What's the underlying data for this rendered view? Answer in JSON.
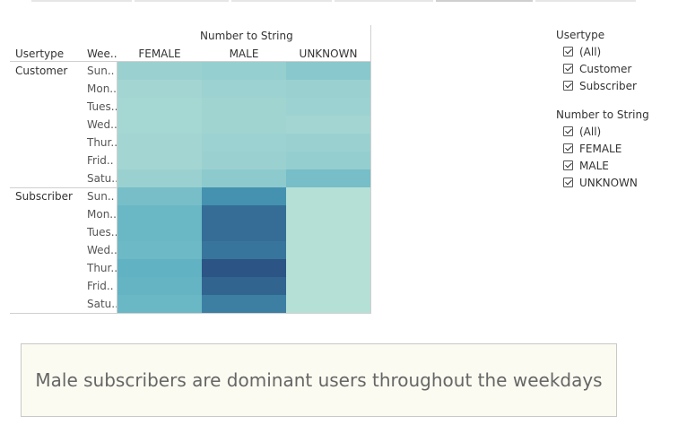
{
  "colors": {
    "scale": [
      "#b9e2d7",
      "#2c5485"
    ]
  },
  "heatmap": {
    "col_group_title": "Number to String",
    "row_headers": [
      "Usertype",
      "Wee.."
    ]
  },
  "chart_data": {
    "type": "heatmap",
    "title": "",
    "columns": [
      "FEMALE",
      "MALE",
      "UNKNOWN"
    ],
    "groups": [
      {
        "name": "Customer",
        "days": [
          "Sun..",
          "Mon..",
          "Tues..",
          "Wed..",
          "Thur..",
          "Frid..",
          "Satu.."
        ],
        "values": [
          [
            0.14,
            0.16,
            0.22
          ],
          [
            0.1,
            0.13,
            0.14
          ],
          [
            0.09,
            0.12,
            0.13
          ],
          [
            0.09,
            0.12,
            0.1
          ],
          [
            0.1,
            0.13,
            0.14
          ],
          [
            0.1,
            0.14,
            0.17
          ],
          [
            0.14,
            0.2,
            0.3
          ]
        ]
      },
      {
        "name": "Subscriber",
        "days": [
          "Sun..",
          "Mon..",
          "Tues..",
          "Wed..",
          "Thur..",
          "Frid..",
          "Satu.."
        ],
        "values": [
          [
            0.3,
            0.62,
            0.02
          ],
          [
            0.36,
            0.85,
            0.02
          ],
          [
            0.36,
            0.85,
            0.02
          ],
          [
            0.34,
            0.8,
            0.02
          ],
          [
            0.4,
            1.0,
            0.02
          ],
          [
            0.38,
            0.9,
            0.02
          ],
          [
            0.36,
            0.74,
            0.02
          ]
        ]
      }
    ],
    "color_scale": "light green (low) to dark blue (high)"
  },
  "filters": [
    {
      "title": "Usertype",
      "options": [
        "(All)",
        "Customer",
        "Subscriber"
      ]
    },
    {
      "title": "Number to String",
      "options": [
        "(All)",
        "FEMALE",
        "MALE",
        "UNKNOWN"
      ]
    }
  ],
  "caption": "Male subscribers are dominant users throughout the weekdays"
}
